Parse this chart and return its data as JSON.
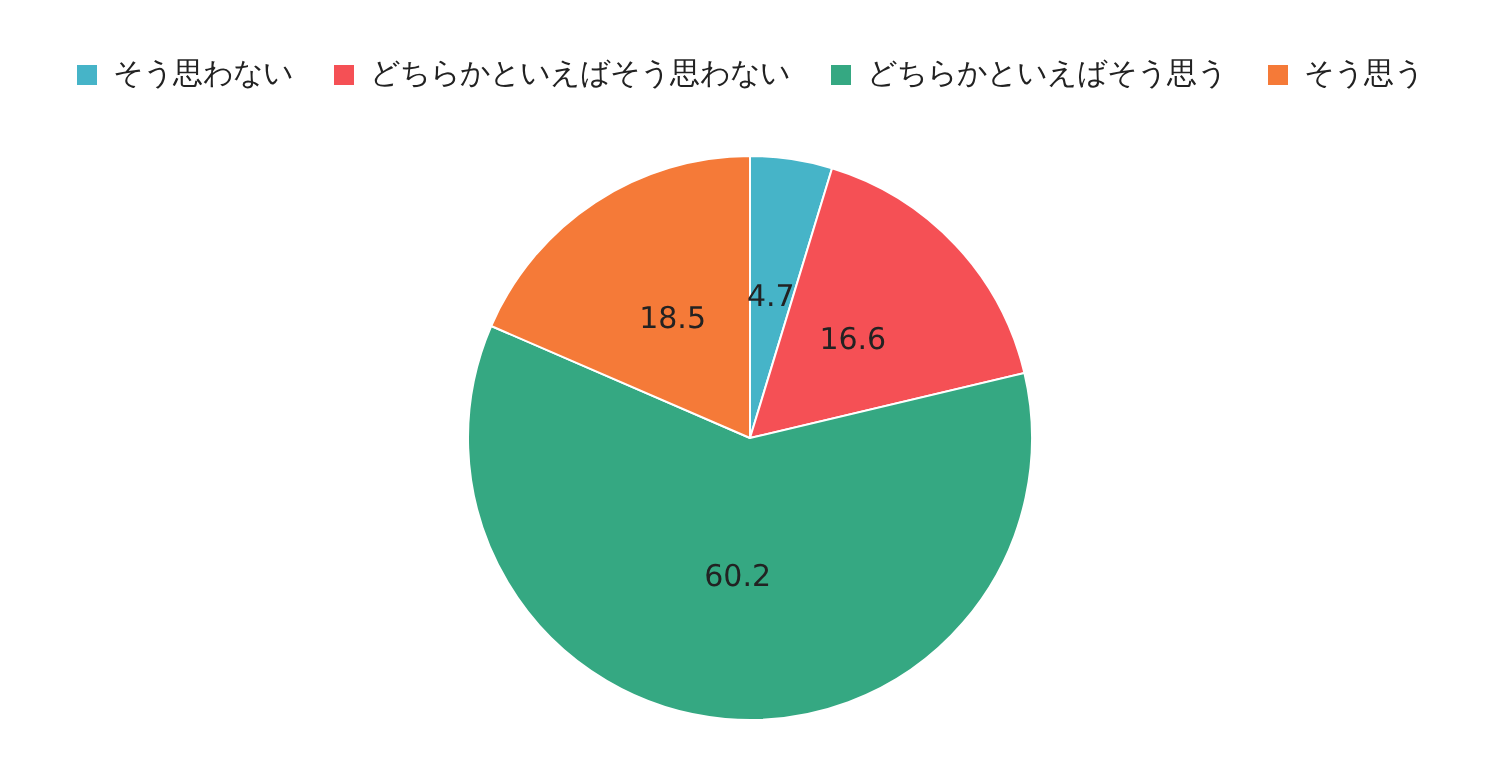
{
  "chart_data": {
    "type": "pie",
    "categories": [
      "そう思わない",
      "どちらかといえばそう思わない",
      "どちらかといえばそう思う",
      "そう思う"
    ],
    "values": [
      4.7,
      16.6,
      60.2,
      18.5
    ],
    "colors": [
      "#46b4c8",
      "#f55055",
      "#35a882",
      "#f57a38"
    ],
    "data_labels": true,
    "legend": "top"
  }
}
